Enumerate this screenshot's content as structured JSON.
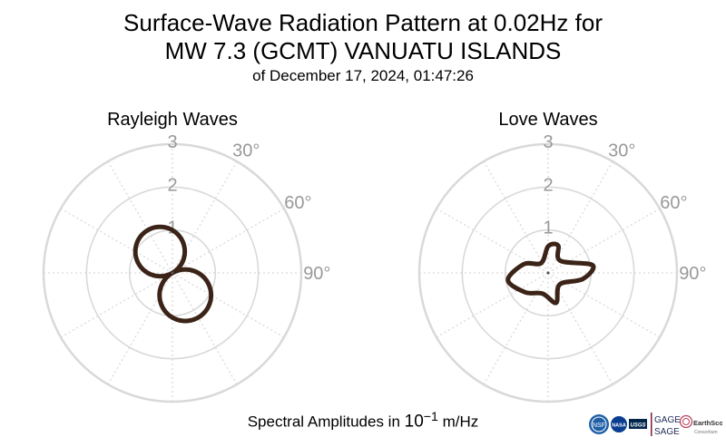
{
  "title_line1": "Surface-Wave Radiation Pattern at 0.02Hz for",
  "title_line2": "MW 7.3 (GCMT) VANUATU ISLANDS",
  "subtitle": "of December 17, 2024, 01:47:26",
  "footer": {
    "prefix": "Spectral Amplitudes in ",
    "unit_base": "10",
    "unit_exp": "−1",
    "unit_suffix": " m/Hz"
  },
  "logos": {
    "nsf": "NSF",
    "nasa": "NASA",
    "usgs": "USGS",
    "gage": "GAGE",
    "sage": "SAGE",
    "earthscope": "EarthScope",
    "consortium": "Consortium"
  },
  "colors": {
    "curve": "#3b2417",
    "grid": "#d9d9d9",
    "tick_text": "#999999"
  },
  "chart_data": [
    {
      "type": "polar",
      "title": "Rayleigh Waves",
      "r_ticks": [
        1,
        2,
        3
      ],
      "rlim": [
        0,
        3
      ],
      "theta_ticks": [
        "30°",
        "60°",
        "90°"
      ],
      "theta_zero": "north",
      "theta_direction": "clockwise",
      "pattern": "two-lobe",
      "lobes": [
        {
          "azimuth_deg": 330,
          "max_amplitude": 1.15
        },
        {
          "azimuth_deg": 150,
          "max_amplitude": 1.2
        }
      ]
    },
    {
      "type": "polar",
      "title": "Love Waves",
      "r_ticks": [
        1,
        2,
        3
      ],
      "rlim": [
        0,
        3
      ],
      "theta_ticks": [
        "30°",
        "60°",
        "90°"
      ],
      "theta_zero": "north",
      "theta_direction": "clockwise",
      "pattern": "four-lobe",
      "points": [
        {
          "az": 0,
          "r": 0.62
        },
        {
          "az": 20,
          "r": 0.68
        },
        {
          "az": 45,
          "r": 0.4
        },
        {
          "az": 80,
          "r": 1.05
        },
        {
          "az": 100,
          "r": 0.82
        },
        {
          "az": 135,
          "r": 0.38
        },
        {
          "az": 165,
          "r": 0.72
        },
        {
          "az": 195,
          "r": 0.5
        },
        {
          "az": 230,
          "r": 0.7
        },
        {
          "az": 260,
          "r": 0.95
        },
        {
          "az": 290,
          "r": 0.6
        },
        {
          "az": 325,
          "r": 0.28
        }
      ]
    }
  ]
}
